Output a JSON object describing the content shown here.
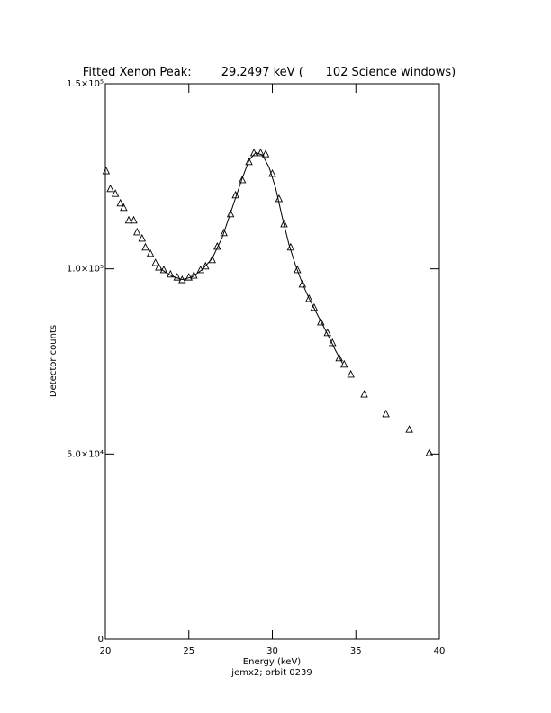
{
  "chart_data": {
    "type": "scatter",
    "title": "Fitted Xenon Peak:        29.2497 keV (      102 Science windows)",
    "xlabel": "Energy (keV)",
    "footnote": "jemx2; orbit 0239",
    "ylabel": "Detector counts",
    "xlim": [
      20,
      40
    ],
    "xticks": [
      20,
      25,
      30,
      35,
      40
    ],
    "ylim": [
      0,
      150000
    ],
    "yticks": [
      0,
      {
        "value": 50000,
        "label": "5.0×10⁴"
      },
      {
        "value": 100000,
        "label": "1.0×10⁵"
      },
      {
        "value": 150000,
        "label": "1.5×10⁵"
      }
    ],
    "color": "#000000",
    "series": [
      {
        "type": "scatter",
        "x": [
          20.05,
          20.3,
          20.6,
          20.9,
          21.1,
          21.4,
          21.7,
          21.9,
          22.2,
          22.4,
          22.7,
          23.0,
          23.2,
          23.5,
          23.9,
          24.3,
          24.6,
          25.0,
          25.3,
          25.7,
          26.0,
          26.4,
          26.7,
          27.1,
          27.5,
          27.8,
          28.2,
          28.6,
          28.9,
          29.3,
          29.6,
          30.0,
          30.4,
          30.7,
          31.1,
          31.5,
          31.8,
          32.2,
          32.5,
          32.9,
          33.3,
          33.6,
          34.0,
          34.3,
          34.7,
          35.5,
          36.8,
          38.2,
          39.4
        ],
        "values": [
          126400,
          121600,
          120300,
          117700,
          116500,
          113100,
          113100,
          109900,
          108200,
          105800,
          104100,
          101600,
          100400,
          99700,
          98500,
          97700,
          97000,
          97700,
          98200,
          99700,
          100700,
          102400,
          106000,
          109700,
          114800,
          119900,
          124000,
          128900,
          131300,
          131300,
          131000,
          125700,
          118900,
          112100,
          105800,
          99700,
          95800,
          91900,
          89500,
          85600,
          82700,
          80000,
          75900,
          74200,
          71500,
          66100,
          60800,
          56600,
          50300
        ]
      },
      {
        "type": "line",
        "x": [
          23.3,
          24.0,
          24.6,
          25.2,
          25.8,
          26.4,
          27.0,
          27.6,
          28.2,
          28.6,
          29.0,
          29.4,
          29.8,
          30.2,
          30.6,
          31.0,
          31.4,
          31.8,
          32.2,
          32.6,
          33.0,
          33.4,
          33.8,
          34.2
        ],
        "values": [
          100000,
          98000,
          97100,
          97800,
          99800,
          102800,
          108500,
          116500,
          124500,
          129300,
          131400,
          130800,
          127500,
          121800,
          113800,
          106500,
          100800,
          96000,
          92000,
          88500,
          85000,
          81500,
          77800,
          74500
        ]
      }
    ]
  }
}
